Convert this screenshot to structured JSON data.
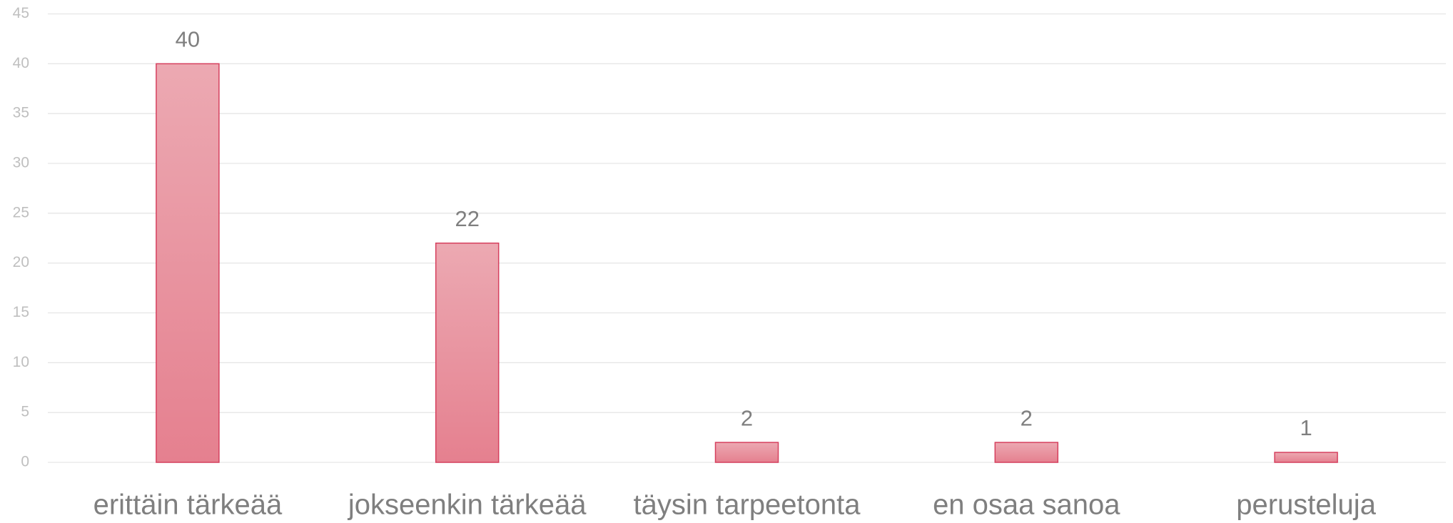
{
  "chart_data": {
    "type": "bar",
    "categories": [
      "erittäin tärkeää",
      "jokseenkin tärkeää",
      "täysin tarpeetonta",
      "en osaa sanoa",
      "perusteluja"
    ],
    "values": [
      40,
      22,
      2,
      2,
      1
    ],
    "color": "#e8909d",
    "ylim": [
      0,
      45
    ],
    "yticks": [
      0,
      5,
      10,
      15,
      20,
      25,
      30,
      35,
      40,
      45
    ],
    "grid": true
  }
}
